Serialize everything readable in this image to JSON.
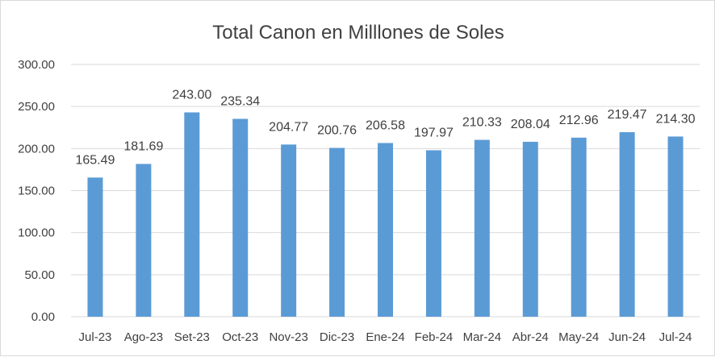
{
  "chart_data": {
    "type": "bar",
    "title": "Total Canon en Milllones de Soles",
    "categories": [
      "Jul-23",
      "Ago-23",
      "Set-23",
      "Oct-23",
      "Nov-23",
      "Dic-23",
      "Ene-24",
      "Feb-24",
      "Mar-24",
      "Abr-24",
      "May-24",
      "Jun-24",
      "Jul-24"
    ],
    "values": [
      165.49,
      181.69,
      243.0,
      235.34,
      204.77,
      200.76,
      206.58,
      197.97,
      210.33,
      208.04,
      212.96,
      219.47,
      214.3
    ],
    "data_labels": [
      "165.49",
      "181.69",
      "243.00",
      "235.34",
      "204.77",
      "200.76",
      "206.58",
      "197.97",
      "210.33",
      "208.04",
      "212.96",
      "219.47",
      "214.30"
    ],
    "yticks": [
      "0.00",
      "50.00",
      "100.00",
      "150.00",
      "200.00",
      "250.00",
      "300.00"
    ],
    "ylim": [
      0,
      300
    ],
    "grid": true,
    "legend": "none",
    "bar_color": "#5b9bd5",
    "grid_color": "#d9d9d9"
  }
}
